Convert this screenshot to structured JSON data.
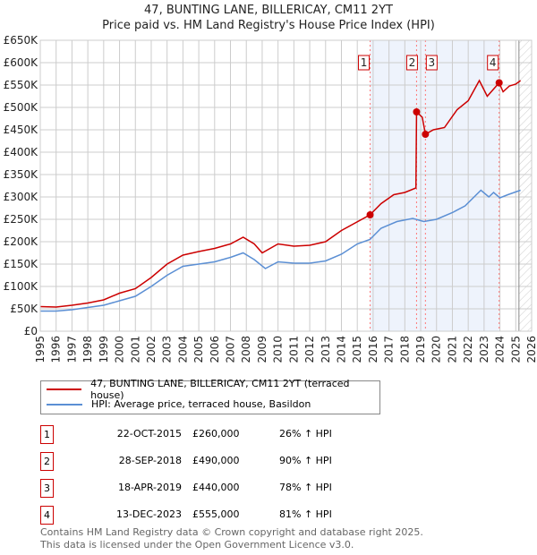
{
  "chart_data": {
    "type": "line",
    "title": "47, BUNTING LANE, BILLERICAY, CM11 2YT",
    "subtitle": "Price paid vs. HM Land Registry's House Price Index (HPI)",
    "xlim": [
      1995,
      2026
    ],
    "ylim": [
      0,
      650000
    ],
    "x_ticks": [
      "1995",
      "1996",
      "1997",
      "1998",
      "1999",
      "2000",
      "2001",
      "2002",
      "2003",
      "2004",
      "2005",
      "2006",
      "2007",
      "2008",
      "2009",
      "2010",
      "2011",
      "2012",
      "2013",
      "2014",
      "2015",
      "2016",
      "2017",
      "2018",
      "2019",
      "2020",
      "2021",
      "2022",
      "2023",
      "2024",
      "2025",
      "2026"
    ],
    "y_ticks": [
      "£0",
      "£50K",
      "£100K",
      "£150K",
      "£200K",
      "£250K",
      "£300K",
      "£350K",
      "£400K",
      "£450K",
      "£500K",
      "£550K",
      "£600K",
      "£650K"
    ],
    "grid": true,
    "series": [
      {
        "name": "47, BUNTING LANE, BILLERICAY, CM11 2YT (terraced house)",
        "color": "#cc0000",
        "points": [
          [
            1995,
            55000
          ],
          [
            1996,
            54000
          ],
          [
            1997,
            58000
          ],
          [
            1998,
            63000
          ],
          [
            1999,
            70000
          ],
          [
            2000,
            85000
          ],
          [
            2001,
            95000
          ],
          [
            2002,
            120000
          ],
          [
            2003,
            150000
          ],
          [
            2004,
            170000
          ],
          [
            2005,
            178000
          ],
          [
            2006,
            185000
          ],
          [
            2007,
            195000
          ],
          [
            2007.8,
            210000
          ],
          [
            2008.5,
            195000
          ],
          [
            2009,
            175000
          ],
          [
            2010,
            195000
          ],
          [
            2011,
            190000
          ],
          [
            2012,
            192000
          ],
          [
            2013,
            200000
          ],
          [
            2014,
            225000
          ],
          [
            2015.8,
            260000
          ],
          [
            2016.5,
            285000
          ],
          [
            2017.3,
            305000
          ],
          [
            2018,
            310000
          ],
          [
            2018.7,
            320000
          ],
          [
            2018.74,
            490000
          ],
          [
            2019.1,
            478000
          ],
          [
            2019.3,
            440000
          ],
          [
            2019.8,
            450000
          ],
          [
            2020.5,
            455000
          ],
          [
            2021.3,
            495000
          ],
          [
            2022,
            515000
          ],
          [
            2022.7,
            560000
          ],
          [
            2023.2,
            525000
          ],
          [
            2023.95,
            555000
          ],
          [
            2024.2,
            535000
          ],
          [
            2024.6,
            548000
          ],
          [
            2025,
            552000
          ],
          [
            2025.3,
            560000
          ]
        ]
      },
      {
        "name": "HPI: Average price, terraced house, Basildon",
        "color": "#5b8fd4",
        "points": [
          [
            1995,
            45000
          ],
          [
            1996,
            45000
          ],
          [
            1997,
            48000
          ],
          [
            1998,
            53000
          ],
          [
            1999,
            58000
          ],
          [
            2000,
            68000
          ],
          [
            2001,
            78000
          ],
          [
            2002,
            100000
          ],
          [
            2003,
            125000
          ],
          [
            2004,
            145000
          ],
          [
            2005,
            150000
          ],
          [
            2006,
            155000
          ],
          [
            2007,
            165000
          ],
          [
            2007.8,
            175000
          ],
          [
            2008.5,
            160000
          ],
          [
            2009.2,
            140000
          ],
          [
            2010,
            155000
          ],
          [
            2011,
            152000
          ],
          [
            2012,
            152000
          ],
          [
            2013,
            157000
          ],
          [
            2014,
            172000
          ],
          [
            2015,
            195000
          ],
          [
            2015.8,
            205000
          ],
          [
            2016.5,
            230000
          ],
          [
            2017.5,
            245000
          ],
          [
            2018.5,
            252000
          ],
          [
            2019.2,
            245000
          ],
          [
            2020,
            250000
          ],
          [
            2021,
            265000
          ],
          [
            2021.8,
            280000
          ],
          [
            2022.8,
            315000
          ],
          [
            2023.3,
            300000
          ],
          [
            2023.6,
            310000
          ],
          [
            2024,
            298000
          ],
          [
            2024.5,
            305000
          ],
          [
            2025.3,
            315000
          ]
        ]
      }
    ],
    "sales": [
      {
        "n": "1",
        "x": 2015.81,
        "y": 260000,
        "date": "22-OCT-2015",
        "price": "£260,000",
        "hpi": "26% ↑ HPI"
      },
      {
        "n": "2",
        "x": 2018.74,
        "y": 490000,
        "date": "28-SEP-2018",
        "price": "£490,000",
        "hpi": "90% ↑ HPI"
      },
      {
        "n": "3",
        "x": 2019.3,
        "y": 440000,
        "date": "18-APR-2019",
        "price": "£440,000",
        "hpi": "78% ↑ HPI"
      },
      {
        "n": "4",
        "x": 2023.95,
        "y": 555000,
        "date": "13-DEC-2023",
        "price": "£555,000",
        "hpi": "81% ↑ HPI"
      }
    ],
    "forecast_start": 2025.2
  },
  "footer": {
    "line1": "Contains HM Land Registry data © Crown copyright and database right 2025.",
    "line2": "This data is licensed under the Open Government Licence v3.0."
  }
}
